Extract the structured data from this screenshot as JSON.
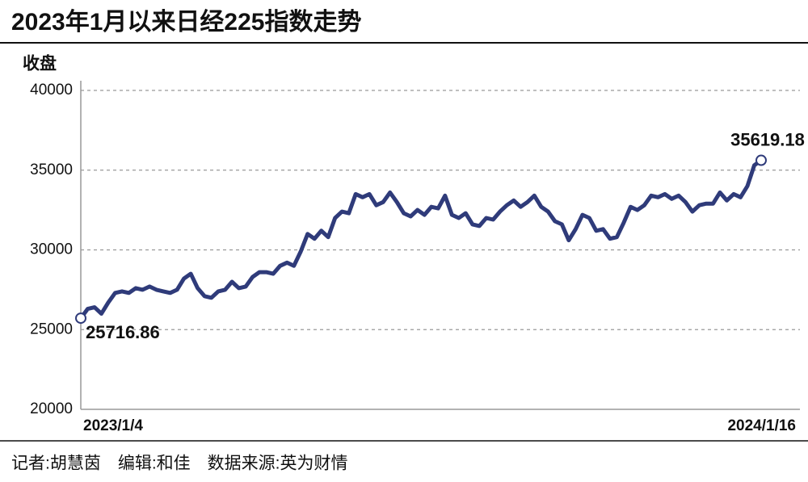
{
  "chart_data": {
    "type": "line",
    "title": "2023年1月以来日经225指数走势",
    "y_label": "收盘",
    "source": "记者:胡慧茵　编辑:和佳　数据来源:英为财情",
    "categories": [
      "2023/1/4",
      null,
      null,
      null,
      null,
      null,
      null,
      null,
      null,
      null,
      null,
      null,
      null,
      null,
      null,
      null,
      null,
      null,
      null,
      null,
      null,
      null,
      null,
      null,
      null,
      null,
      null,
      null,
      null,
      null,
      null,
      null,
      null,
      null,
      null,
      null,
      null,
      null,
      null,
      null,
      null,
      null,
      null,
      null,
      null,
      null,
      null,
      null,
      null,
      null,
      null,
      null,
      null,
      null,
      null,
      null,
      null,
      null,
      null,
      null,
      null,
      null,
      null,
      null,
      null,
      null,
      null,
      null,
      null,
      null,
      null,
      null,
      null,
      null,
      null,
      null,
      null,
      null,
      null,
      null,
      null,
      null,
      null,
      null,
      null,
      null,
      null,
      null,
      null,
      null,
      null,
      null,
      null,
      null,
      null,
      null,
      null,
      null,
      null,
      "2024/1/16"
    ],
    "series": [
      {
        "name": "收盘",
        "color": "#2f3b7a",
        "values": [
          25716.86,
          26300,
          26400,
          26000,
          26700,
          27300,
          27400,
          27300,
          27600,
          27500,
          27700,
          27500,
          27400,
          27300,
          27500,
          28200,
          28500,
          27600,
          27100,
          27000,
          27400,
          27500,
          28000,
          27600,
          27700,
          28300,
          28600,
          28600,
          28500,
          29000,
          29200,
          29000,
          29900,
          31000,
          30700,
          31200,
          30800,
          32000,
          32400,
          32300,
          33500,
          33300,
          33500,
          32800,
          33000,
          33600,
          33000,
          32300,
          32100,
          32500,
          32200,
          32700,
          32600,
          33400,
          32200,
          32000,
          32300,
          31600,
          31500,
          32000,
          31900,
          32400,
          32800,
          33100,
          32700,
          33000,
          33400,
          32700,
          32400,
          31800,
          31600,
          30600,
          31300,
          32200,
          32000,
          31200,
          31300,
          30700,
          30800,
          31700,
          32700,
          32500,
          32800,
          33400,
          33300,
          33500,
          33200,
          33400,
          33000,
          32400,
          32800,
          32900,
          32900,
          33600,
          33100,
          33500,
          33300,
          34000,
          35300,
          35619.18
        ]
      }
    ],
    "ylim": [
      20000,
      40000
    ],
    "yticks": [
      20000,
      25000,
      30000,
      35000,
      40000
    ],
    "grid": true
  }
}
